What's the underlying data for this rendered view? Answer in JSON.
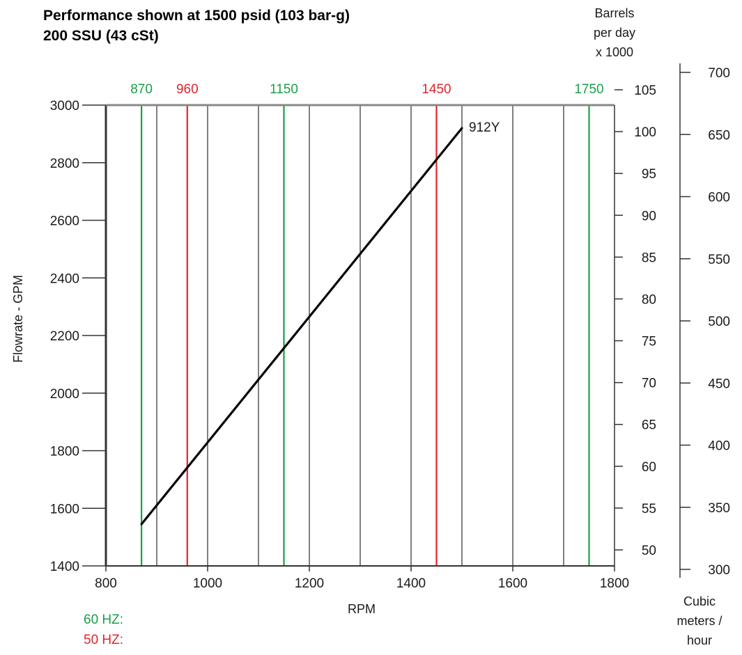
{
  "chart_data": {
    "type": "line",
    "title_lines": [
      "Performance shown at 1500 psid (103 bar-g)",
      "200 SSU (43 cSt)"
    ],
    "xlabel": "RPM",
    "ylabel": "Flowrate - GPM",
    "xlim": [
      800,
      1800
    ],
    "ylim": [
      1400,
      3000
    ],
    "x_ticks": [
      800,
      1000,
      1200,
      1400,
      1600,
      1800
    ],
    "y_ticks": [
      1400,
      1600,
      1800,
      2000,
      2200,
      2400,
      2600,
      2800,
      3000
    ],
    "vertical_grid_x": [
      900,
      1000,
      1100,
      1200,
      1300,
      1400,
      1500,
      1600,
      1700
    ],
    "series": [
      {
        "name": "912Y",
        "x": [
          870,
          1500
        ],
        "y": [
          1545,
          2920
        ],
        "color": "#000000"
      }
    ],
    "speed_lines": [
      {
        "rpm": 870,
        "label": "870",
        "freq": "60 HZ"
      },
      {
        "rpm": 960,
        "label": "960",
        "freq": "50 HZ"
      },
      {
        "rpm": 1150,
        "label": "1150",
        "freq": "60 HZ"
      },
      {
        "rpm": 1450,
        "label": "1450",
        "freq": "50 HZ"
      },
      {
        "rpm": 1750,
        "label": "1750",
        "freq": "60 HZ"
      }
    ],
    "secondary_axis_barrels": {
      "label_lines": [
        "Barrels",
        "per day",
        "x 1000"
      ],
      "ticks": [
        50,
        55,
        60,
        65,
        70,
        75,
        80,
        85,
        90,
        95,
        100,
        105
      ]
    },
    "secondary_axis_cubic": {
      "label_lines": [
        "Cubic",
        "meters /",
        "hour"
      ],
      "ticks": [
        300,
        350,
        400,
        450,
        500,
        550,
        600,
        650,
        700
      ]
    },
    "legend": [
      {
        "label": "60 HZ:",
        "color": "#1a9e48"
      },
      {
        "label": "50 HZ:",
        "color": "#e0242c"
      }
    ],
    "colors": {
      "hz60": "#1a9e48",
      "hz50": "#e0242c",
      "axis": "#333333",
      "grid": "#000000"
    },
    "grid": true
  }
}
